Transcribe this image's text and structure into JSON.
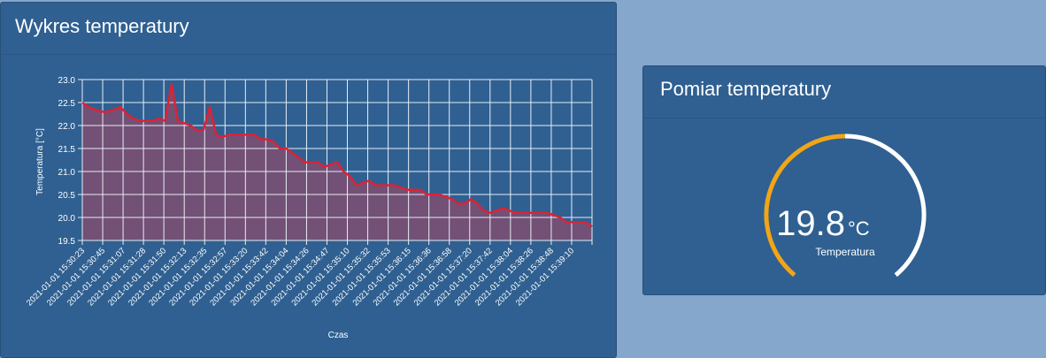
{
  "chart_panel": {
    "title": "Wykres temperatury"
  },
  "gauge_panel": {
    "title": "Pomiar temperatury",
    "value": 19.8,
    "value_text": "19.8",
    "unit": "°C",
    "label": "Temperatura",
    "fill_color": "#f2a516",
    "track_color": "#ffffff"
  },
  "chart_data": {
    "type": "area",
    "title": "",
    "xlabel": "Czas",
    "ylabel": "Temperatura [°C]",
    "ylim": [
      19.5,
      23.0
    ],
    "yticks": [
      "19.5",
      "20.0",
      "20.5",
      "21.0",
      "21.5",
      "22.0",
      "22.5",
      "23.0"
    ],
    "grid": true,
    "line_color": "#dc2236",
    "fill_color": "#7a4f73",
    "xticks": [
      "2021-01-01 15:30:23",
      "2021-01-01 15:30:45",
      "2021-01-01 15:31:07",
      "2021-01-01 15:31:28",
      "2021-01-01 15:31:50",
      "2021-01-01 15:32:13",
      "2021-01-01 15:32:35",
      "2021-01-01 15:32:57",
      "2021-01-01 15:33:20",
      "2021-01-01 15:33:42",
      "2021-01-01 15:34:04",
      "2021-01-01 15:34:26",
      "2021-01-01 15:34:47",
      "2021-01-01 15:35:10",
      "2021-01-01 15:35:32",
      "2021-01-01 15:35:53",
      "2021-01-01 15:36:15",
      "2021-01-01 15:36:36",
      "2021-01-01 15:36:58",
      "2021-01-01 15:37:20",
      "2021-01-01 15:37:42",
      "2021-01-01 15:38:04",
      "2021-01-01 15:38:26",
      "2021-01-01 15:38:48",
      "2021-01-01 15:39:10"
    ],
    "values": [
      22.5,
      22.4,
      22.35,
      22.3,
      22.3,
      22.35,
      22.4,
      22.25,
      22.15,
      22.1,
      22.1,
      22.1,
      22.15,
      22.1,
      22.9,
      22.1,
      22.05,
      22.0,
      21.9,
      21.9,
      22.4,
      21.8,
      21.75,
      21.8,
      21.8,
      21.8,
      21.8,
      21.8,
      21.7,
      21.7,
      21.65,
      21.5,
      21.5,
      21.4,
      21.3,
      21.2,
      21.2,
      21.2,
      21.1,
      21.15,
      21.2,
      21.0,
      20.9,
      20.7,
      20.75,
      20.8,
      20.7,
      20.7,
      20.7,
      20.7,
      20.65,
      20.6,
      20.6,
      20.6,
      20.5,
      20.5,
      20.5,
      20.45,
      20.4,
      20.3,
      20.3,
      20.4,
      20.3,
      20.15,
      20.1,
      20.15,
      20.2,
      20.15,
      20.1,
      20.1,
      20.1,
      20.1,
      20.1,
      20.1,
      20.05,
      20.0,
      19.9,
      19.9,
      19.9,
      19.9,
      19.8
    ]
  }
}
